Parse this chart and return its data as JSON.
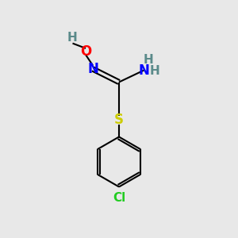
{
  "bg_color": "#e8e8e8",
  "atom_colors": {
    "C": "#000000",
    "H": "#5a8a8a",
    "N": "#0000ff",
    "O": "#ff0000",
    "S": "#cccc00",
    "Cl": "#22cc22"
  },
  "figsize": [
    3.0,
    3.0
  ],
  "dpi": 100,
  "bond_lw": 1.5,
  "double_sep": 0.09
}
